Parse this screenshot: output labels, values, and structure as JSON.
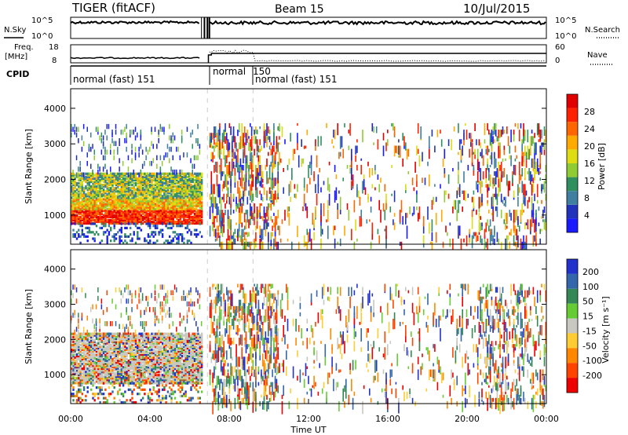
{
  "header": {
    "title": "TIGER (fitACF)",
    "beam": "Beam 15",
    "date": "10/Jul/2015"
  },
  "top_panel": {
    "left_label": "N.Sky",
    "right_label": "N.Search",
    "ytick_top": "10^5",
    "ytick_bottom": "10^0"
  },
  "freq_panel": {
    "left_label": "Freq.",
    "left_unit": "[MHz]",
    "ytick_top": "18",
    "ytick_bottom": "8",
    "right_label": "Nave",
    "right_tick_top": "60",
    "right_tick_bottom": "0"
  },
  "cpid_panel": {
    "label": "CPID",
    "segments": [
      {
        "label": "normal (fast) 151",
        "start_hour": 0.0
      },
      {
        "label": "normal",
        "start_hour": 7.0
      },
      {
        "label": "150",
        "start_hour": 9.2
      },
      {
        "label": "normal (fast) 151",
        "start_hour": 9.2
      }
    ]
  },
  "chart_data": [
    {
      "type": "heatmap",
      "name": "power",
      "ylabel": "Slant Range [km]",
      "xlabel": "",
      "xlim": [
        0,
        24
      ],
      "ylim": [
        180,
        4550
      ],
      "yticks": [
        "1000",
        "2000",
        "3000",
        "4000"
      ],
      "colorbar": {
        "label": "Power [dB]",
        "ticks": [
          "4",
          "8",
          "12",
          "16",
          "20",
          "24",
          "28"
        ],
        "colors": [
          "#1a1aff",
          "#2233bb",
          "#3f7fa0",
          "#2f8f5f",
          "#8fcc33",
          "#dddd11",
          "#ffaa00",
          "#ff6600",
          "#ff2200",
          "#e00000"
        ]
      },
      "data_gap_hours": [
        6.6,
        7.0
      ]
    },
    {
      "type": "heatmap",
      "name": "velocity",
      "ylabel": "Slant Range [km]",
      "xlabel": "Time UT",
      "xlim": [
        0,
        24
      ],
      "ylim": [
        180,
        4550
      ],
      "yticks": [
        "1000",
        "2000",
        "3000",
        "4000"
      ],
      "xticks": [
        "00:00",
        "04:00",
        "08:00",
        "12:00",
        "16:00",
        "20:00",
        "00:00"
      ],
      "colorbar": {
        "label": "Velocity [m s⁻¹]",
        "ticks": [
          "200",
          "100",
          "50",
          "15",
          "-15",
          "-50",
          "-100",
          "-200"
        ],
        "colors": [
          "#2233cc",
          "#3366aa",
          "#338855",
          "#66cc33",
          "#c8c8c0",
          "#ffcc33",
          "#ff8800",
          "#ff4400",
          "#ee0000"
        ]
      },
      "data_gap_hours": [
        6.6,
        7.0
      ]
    }
  ]
}
